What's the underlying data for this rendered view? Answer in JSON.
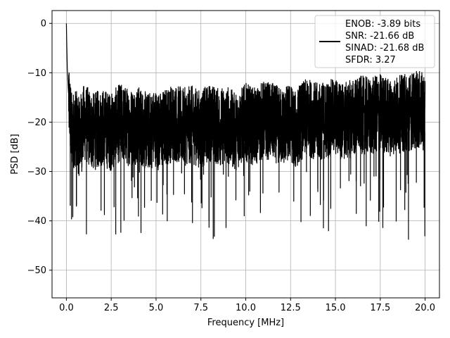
{
  "chart_data": {
    "type": "line",
    "xlabel": "Frequency [MHz]",
    "ylabel": "PSD [dB]",
    "xlim": [
      -0.8,
      20.8
    ],
    "ylim": [
      -55.6,
      2.6
    ],
    "xticks": [
      0.0,
      2.5,
      5.0,
      7.5,
      10.0,
      12.5,
      15.0,
      17.5,
      20.0
    ],
    "xtick_labels": [
      "0.0",
      "2.5",
      "5.0",
      "7.5",
      "10.0",
      "12.5",
      "15.0",
      "17.5",
      "20.0"
    ],
    "yticks": [
      0,
      -10,
      -20,
      -30,
      -40,
      -50
    ],
    "ytick_labels": [
      "0",
      "−10",
      "−20",
      "−30",
      "−40",
      "−50"
    ],
    "grid": true,
    "legend_position": "top-right",
    "legend_lines": [
      "ENOB: -3.89 bits",
      "SNR: -21.66 dB",
      "SINAD: -21.68 dB",
      "SFDR: 3.27"
    ],
    "line_color": "#000000",
    "series": [
      {
        "x": [
          0.0,
          0.02,
          0.05,
          0.1,
          0.15,
          0.3,
          0.5,
          0.7,
          1.0,
          1.5,
          2.0,
          2.5,
          3.0,
          3.5,
          4.0,
          4.5,
          5.0,
          5.15,
          5.5,
          6.0,
          6.5,
          7.0,
          7.5,
          8.0,
          8.5,
          9.0,
          9.4,
          10.0,
          10.5,
          11.0,
          11.5,
          12.0,
          12.5,
          12.8,
          13.0,
          13.5,
          14.0,
          14.5,
          15.0,
          15.5,
          16.0,
          16.5,
          17.0,
          17.5,
          18.0,
          18.5,
          19.0,
          19.5,
          20.0
        ],
        "y": [
          0.0,
          -4.0,
          -9.0,
          -13.0,
          -16.0,
          -22.0,
          -21.0,
          -23.0,
          -20.0,
          -22.0,
          -21.0,
          -22.0,
          -20.0,
          -21.0,
          -20.5,
          -22.0,
          -21.0,
          -22.0,
          -21.0,
          -20.0,
          -21.0,
          -20.5,
          -21.5,
          -20.0,
          -21.0,
          -20.5,
          -22.0,
          -20.0,
          -21.0,
          -19.5,
          -20.0,
          -21.0,
          -20.0,
          -22.0,
          -20.0,
          -19.0,
          -20.0,
          -19.5,
          -19.0,
          -20.0,
          -19.0,
          -18.5,
          -19.0,
          -18.0,
          -19.0,
          -18.5,
          -18.0,
          -17.5,
          -18.0
        ]
      }
    ]
  }
}
